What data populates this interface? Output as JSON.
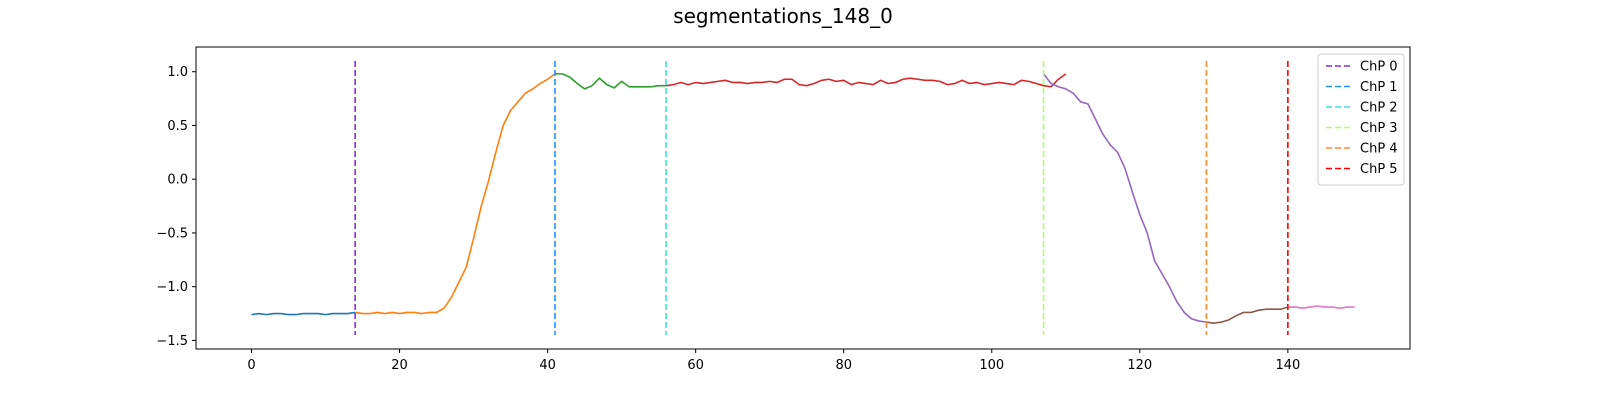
{
  "chart_data": {
    "type": "line",
    "title": "segmentations_148_0",
    "xlabel": "",
    "ylabel": "",
    "xlim": [
      -7.5,
      156.5
    ],
    "ylim": [
      -1.58,
      1.23
    ],
    "xticks": [
      0,
      20,
      40,
      60,
      80,
      100,
      120,
      140
    ],
    "xtick_labels": [
      "0",
      "20",
      "40",
      "60",
      "80",
      "100",
      "120",
      "140"
    ],
    "yticks": [
      1.0,
      0.5,
      0.0,
      -0.5,
      -1.0,
      -1.5
    ],
    "ytick_labels": [
      "1.0",
      "0.5",
      "0.0",
      "−0.5",
      "−1.0",
      "−1.5"
    ],
    "grid": false,
    "legend_position": "top-right",
    "segments": [
      {
        "color": "#1f77b4",
        "x_start": 0,
        "values": [
          -1.26,
          -1.25,
          -1.26,
          -1.25,
          -1.25,
          -1.26,
          -1.26,
          -1.25,
          -1.25,
          -1.25,
          -1.26,
          -1.25,
          -1.25,
          -1.25,
          -1.24
        ]
      },
      {
        "color": "#ff7f0e",
        "x_start": 14,
        "values": [
          -1.24,
          -1.25,
          -1.25,
          -1.24,
          -1.25,
          -1.24,
          -1.25,
          -1.24,
          -1.24,
          -1.25,
          -1.24,
          -1.24,
          -1.2,
          -1.1,
          -0.96,
          -0.82,
          -0.55,
          -0.26,
          -0.02,
          0.25,
          0.5,
          0.64,
          0.72,
          0.8,
          0.84,
          0.89,
          0.93,
          0.98
        ]
      },
      {
        "color": "#2ca02c",
        "x_start": 41,
        "values": [
          0.98,
          0.98,
          0.95,
          0.89,
          0.84,
          0.87,
          0.94,
          0.88,
          0.85,
          0.91,
          0.86,
          0.86,
          0.86,
          0.86,
          0.87,
          0.87
        ]
      },
      {
        "color": "#d62728",
        "x_start": 56,
        "values": [
          0.87,
          0.88,
          0.9,
          0.88,
          0.9,
          0.89,
          0.9,
          0.91,
          0.92,
          0.9,
          0.9,
          0.89,
          0.9,
          0.9,
          0.91,
          0.9,
          0.93,
          0.93,
          0.88,
          0.87,
          0.89,
          0.92,
          0.93,
          0.91,
          0.92,
          0.88,
          0.9,
          0.89,
          0.88,
          0.92,
          0.89,
          0.9,
          0.93,
          0.94,
          0.93,
          0.92,
          0.92,
          0.91,
          0.88,
          0.89,
          0.92,
          0.89,
          0.9,
          0.88,
          0.89,
          0.9,
          0.89,
          0.88,
          0.92,
          0.91,
          0.89,
          0.87,
          0.86,
          0.93,
          0.98
        ]
      },
      {
        "color": "#9467bd",
        "x_start": 107,
        "values": [
          0.98,
          0.89,
          0.86,
          0.84,
          0.8,
          0.72,
          0.7,
          0.56,
          0.42,
          0.32,
          0.25,
          0.1,
          -0.12,
          -0.33,
          -0.5,
          -0.76,
          -0.88,
          -1.0,
          -1.14,
          -1.24,
          -1.3,
          -1.32,
          -1.33
        ]
      },
      {
        "color": "#8c564b",
        "x_start": 129,
        "values": [
          -1.33,
          -1.34,
          -1.33,
          -1.31,
          -1.27,
          -1.24,
          -1.24,
          -1.22,
          -1.21,
          -1.21,
          -1.21,
          -1.19
        ]
      },
      {
        "color": "#e377c2",
        "x_start": 140,
        "values": [
          -1.19,
          -1.19,
          -1.2,
          -1.19,
          -1.18,
          -1.19,
          -1.19,
          -1.2,
          -1.19,
          -1.19
        ]
      }
    ],
    "changepoints": [
      {
        "name": "ChP 0",
        "x": 14,
        "color": "#8a2be2"
      },
      {
        "name": "ChP 1",
        "x": 41,
        "color": "#1e90ff"
      },
      {
        "name": "ChP 2",
        "x": 56,
        "color": "#40e0d0"
      },
      {
        "name": "ChP 3",
        "x": 107,
        "color": "#adff6f"
      },
      {
        "name": "ChP 4",
        "x": 129,
        "color": "#ff8c3a"
      },
      {
        "name": "ChP 5",
        "x": 140,
        "color": "#ff0000"
      }
    ],
    "changepoint_range": [
      -1.45,
      1.1
    ]
  }
}
